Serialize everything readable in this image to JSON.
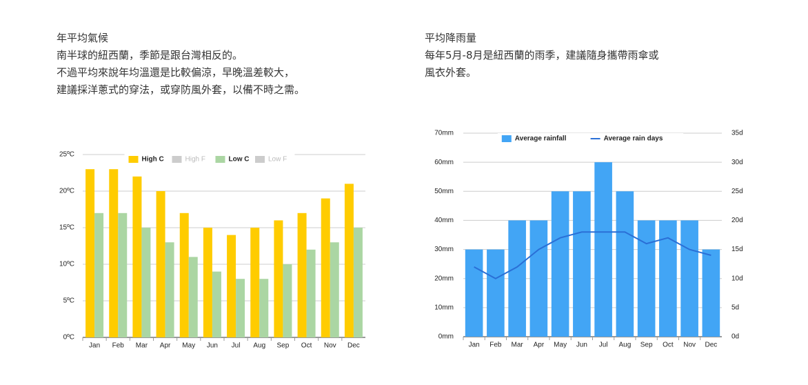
{
  "left_text": {
    "title": "年平均氣候",
    "lines": [
      "南半球的紐西蘭，季節是跟台灣相反的。",
      "不過平均來說年均溫還是比較偏涼，早晚溫差較大，",
      "建議採洋蔥式的穿法，或穿防風外套，以備不時之需。"
    ]
  },
  "right_text": {
    "title": "平均降雨量",
    "lines": [
      "每年5月-8月是紐西蘭的雨季，建議隨身攜帶雨傘或",
      "風衣外套。"
    ]
  },
  "chart_data": [
    {
      "type": "bar",
      "categories": [
        "Jan",
        "Feb",
        "Mar",
        "Apr",
        "May",
        "Jun",
        "Jul",
        "Aug",
        "Sep",
        "Oct",
        "Nov",
        "Dec"
      ],
      "series": [
        {
          "name": "High C",
          "color": "#ffcc00",
          "values": [
            23,
            23,
            22,
            20,
            17,
            15,
            14,
            15,
            16,
            17,
            19,
            21
          ]
        },
        {
          "name": "Low C",
          "color": "#abd6a3",
          "values": [
            17,
            17,
            15,
            13,
            11,
            9,
            8,
            8,
            10,
            12,
            13,
            15
          ]
        }
      ],
      "hidden_series": [
        {
          "name": "High F",
          "color": "#cccccc"
        },
        {
          "name": "Low F",
          "color": "#cccccc"
        }
      ],
      "ylim": [
        0,
        25
      ],
      "yticks": [
        {
          "value": 0,
          "label": "0ºC"
        },
        {
          "value": 5,
          "label": "5ºC"
        },
        {
          "value": 10,
          "label": "10ºC"
        },
        {
          "value": 15,
          "label": "15ºC"
        },
        {
          "value": 20,
          "label": "20ºC"
        },
        {
          "value": 25,
          "label": "25ºC"
        }
      ],
      "grid": true,
      "legend": "top"
    },
    {
      "type": "bar_line",
      "categories": [
        "Jan",
        "Feb",
        "Mar",
        "Apr",
        "May",
        "Jun",
        "Jul",
        "Aug",
        "Sep",
        "Oct",
        "Nov",
        "Dec"
      ],
      "series": [
        {
          "name": "Average rainfall",
          "color": "#42a5f5",
          "values": [
            30,
            30,
            40,
            40,
            50,
            50,
            60,
            50,
            40,
            40,
            40,
            30
          ]
        },
        {
          "name": "Average rain days",
          "color": "#2a6fd6",
          "axis": "y2",
          "values": [
            12,
            10,
            12,
            15,
            17,
            18,
            18,
            18,
            16,
            17,
            15,
            14
          ]
        }
      ],
      "ylim": [
        0,
        70
      ],
      "yticks": [
        {
          "value": 0,
          "label": "0mm"
        },
        {
          "value": 10,
          "label": "10mm"
        },
        {
          "value": 20,
          "label": "20mm"
        },
        {
          "value": 30,
          "label": "30mm"
        },
        {
          "value": 40,
          "label": "40mm"
        },
        {
          "value": 50,
          "label": "50mm"
        },
        {
          "value": 60,
          "label": "60mm"
        },
        {
          "value": 70,
          "label": "70mm"
        }
      ],
      "y2lim": [
        0,
        35
      ],
      "y2ticks": [
        {
          "value": 0,
          "label": "0d"
        },
        {
          "value": 5,
          "label": "5d"
        },
        {
          "value": 10,
          "label": "10d"
        },
        {
          "value": 15,
          "label": "15d"
        },
        {
          "value": 20,
          "label": "20d"
        },
        {
          "value": 25,
          "label": "25d"
        },
        {
          "value": 30,
          "label": "30d"
        },
        {
          "value": 35,
          "label": "35d"
        }
      ],
      "grid": true,
      "legend": "top"
    }
  ]
}
